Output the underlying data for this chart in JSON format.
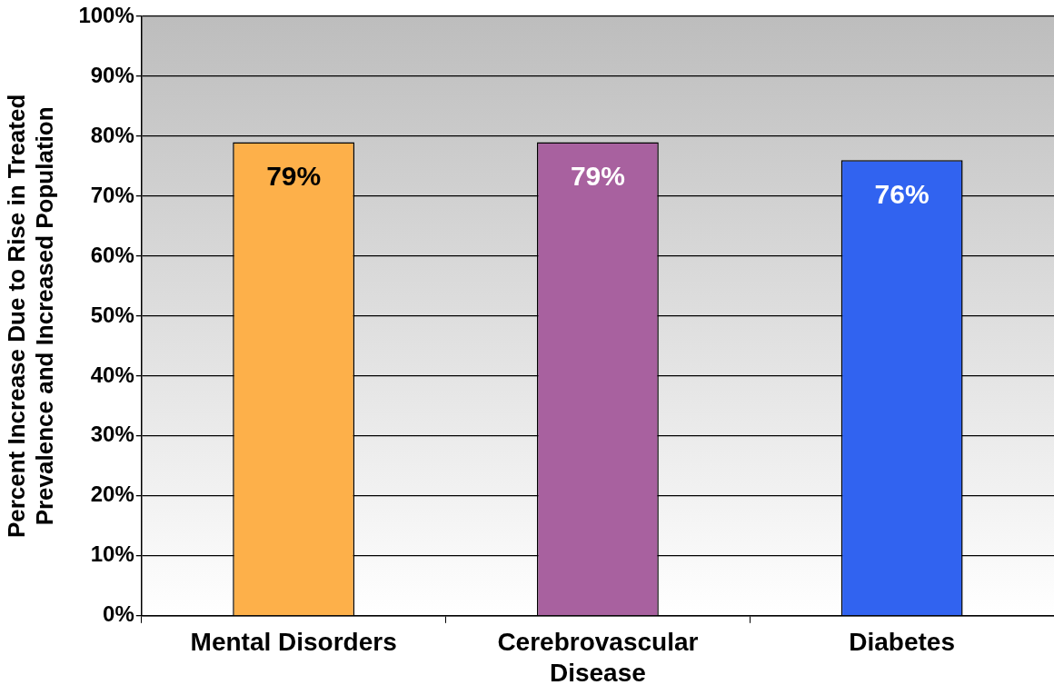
{
  "chart_data": {
    "type": "bar",
    "ylabel": "Percent Increase Due to Rise in Treated\nPrevalence and Increased Population",
    "categories": [
      "Mental Disorders",
      "Cerebrovascular Disease",
      "Diabetes"
    ],
    "values": [
      79,
      79,
      76
    ],
    "colors": [
      "#fdb04a",
      "#a8619f",
      "#3163f0"
    ],
    "value_labels": [
      "79%",
      "79%",
      "76%"
    ],
    "ylim": [
      0,
      100
    ],
    "yticks": [
      {
        "value": 0,
        "label": "0%"
      },
      {
        "value": 10,
        "label": "10%"
      },
      {
        "value": 20,
        "label": "20%"
      },
      {
        "value": 30,
        "label": "30%"
      },
      {
        "value": 40,
        "label": "40%"
      },
      {
        "value": 50,
        "label": "50%"
      },
      {
        "value": 60,
        "label": "60%"
      },
      {
        "value": 70,
        "label": "70%"
      },
      {
        "value": 80,
        "label": "80%"
      },
      {
        "value": 90,
        "label": "90%"
      },
      {
        "value": 100,
        "label": "100%"
      }
    ],
    "grid": "y",
    "legend": false
  }
}
